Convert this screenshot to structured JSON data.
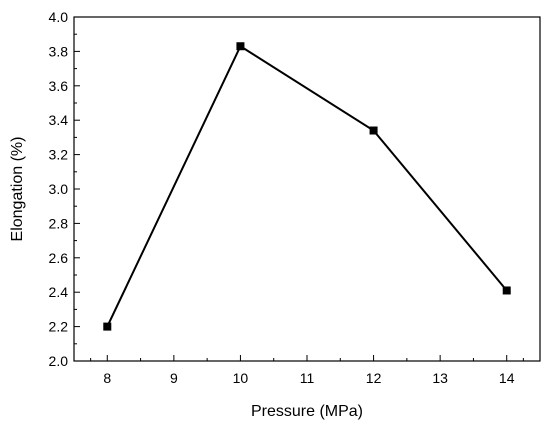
{
  "chart_data": {
    "type": "line",
    "xlabel": "Pressure (MPa)",
    "ylabel": "Elongation (%)",
    "xlim": [
      7.5,
      14.5
    ],
    "ylim": [
      2.0,
      4.0
    ],
    "x_ticks": [
      8,
      9,
      10,
      11,
      12,
      13,
      14
    ],
    "y_ticks": [
      2.0,
      2.2,
      2.4,
      2.6,
      2.8,
      3.0,
      3.2,
      3.4,
      3.6,
      3.8,
      4.0
    ],
    "x_tick_labels": [
      "8",
      "9",
      "10",
      "11",
      "12",
      "13",
      "14"
    ],
    "y_tick_labels": [
      "2.0",
      "2.2",
      "2.4",
      "2.6",
      "2.8",
      "3.0",
      "3.2",
      "3.4",
      "3.6",
      "3.8",
      "4.0"
    ],
    "series": [
      {
        "x": [
          8,
          10,
          12,
          14
        ],
        "values": [
          2.2,
          3.83,
          3.34,
          2.41
        ],
        "marker": "square",
        "color": "#000000"
      }
    ],
    "grid": false,
    "legend": "none"
  }
}
